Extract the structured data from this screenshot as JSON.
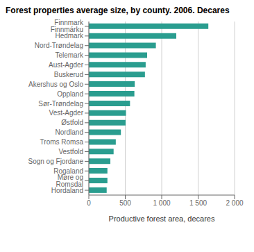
{
  "chart_data": {
    "type": "bar",
    "orientation": "horizontal",
    "title": "Forest properties average size, by county. 2006. Decares",
    "categories": [
      "Finnmark Finnmárku",
      "Hedmark",
      "Nord-Trøndelag",
      "Telemark",
      "Aust-Agder",
      "Buskerud",
      "Akershus og Oslo",
      "Oppland",
      "Sør-Trøndelag",
      "Vest-Agder",
      "Østfold",
      "Nordland",
      "Troms Romsa",
      "Vestfold",
      "Sogn og Fjordane",
      "Rogaland",
      "Møre og Romsdal",
      "Hordaland"
    ],
    "values": [
      1640,
      1200,
      920,
      800,
      780,
      770,
      630,
      625,
      565,
      510,
      505,
      440,
      370,
      340,
      295,
      255,
      255,
      245
    ],
    "color": "#2a9d8f",
    "xlabel": "Productive forest area, decares",
    "xlim": [
      0,
      2000
    ],
    "xticks": [
      0,
      500,
      {
        "value": 1000,
        "label": "1 000"
      },
      {
        "value": 1500,
        "label": "1 500"
      },
      {
        "value": 2000,
        "label": "2 000"
      }
    ],
    "grid": true
  }
}
